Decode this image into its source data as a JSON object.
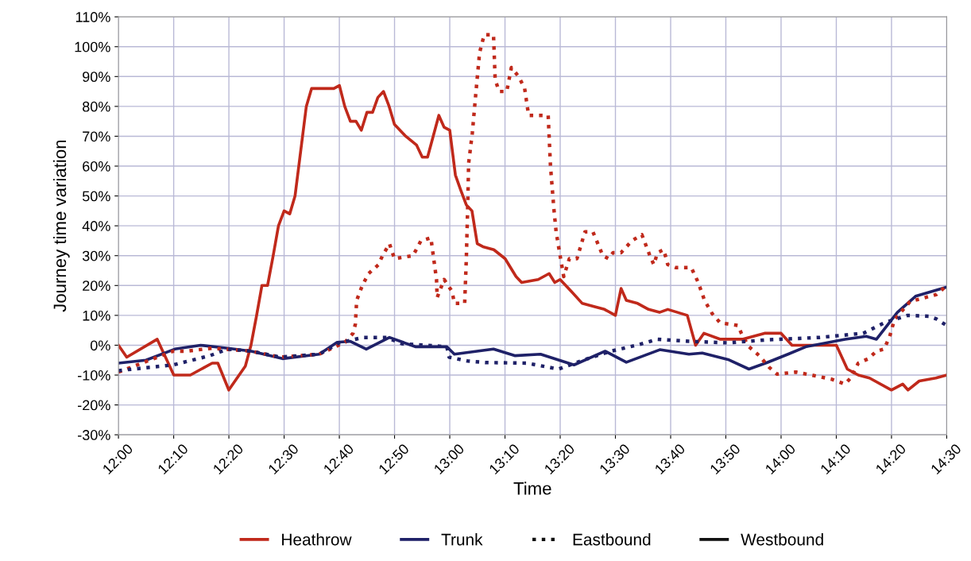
{
  "chart_data": {
    "type": "line",
    "xlabel": "Time",
    "ylabel": "Journey time variation",
    "xlim": [
      12,
      14.5
    ],
    "xticks": [
      {
        "value": 12,
        "label": "12:00"
      },
      {
        "value": 12.1667,
        "label": "12:10"
      },
      {
        "value": 12.3333,
        "label": "12:20"
      },
      {
        "value": 12.5,
        "label": "12:30"
      },
      {
        "value": 12.6667,
        "label": "12:40"
      },
      {
        "value": 12.8333,
        "label": "12:50"
      },
      {
        "value": 13,
        "label": "13:00"
      },
      {
        "value": 13.1667,
        "label": "13:10"
      },
      {
        "value": 13.3333,
        "label": "13:20"
      },
      {
        "value": 13.5,
        "label": "13:30"
      },
      {
        "value": 13.6667,
        "label": "13:40"
      },
      {
        "value": 13.8333,
        "label": "13:50"
      },
      {
        "value": 14,
        "label": "14:00"
      },
      {
        "value": 14.1667,
        "label": "14:10"
      },
      {
        "value": 14.3333,
        "label": "14:20"
      },
      {
        "value": 14.5,
        "label": "14:30"
      }
    ],
    "ylim": [
      -30,
      110
    ],
    "yticks": [
      {
        "value": -30,
        "label": "-30%"
      },
      {
        "value": -20,
        "label": "-20%"
      },
      {
        "value": -10,
        "label": "-10%"
      },
      {
        "value": 0,
        "label": "0%"
      },
      {
        "value": 10,
        "label": "10%"
      },
      {
        "value": 20,
        "label": "20%"
      },
      {
        "value": 30,
        "label": "30%"
      },
      {
        "value": 40,
        "label": "40%"
      },
      {
        "value": 50,
        "label": "50%"
      },
      {
        "value": 60,
        "label": "60%"
      },
      {
        "value": 70,
        "label": "70%"
      },
      {
        "value": 80,
        "label": "80%"
      },
      {
        "value": 90,
        "label": "90%"
      },
      {
        "value": 100,
        "label": "100%"
      },
      {
        "value": 110,
        "label": "110%"
      }
    ],
    "grid": true,
    "legend": "bottom",
    "series": [
      {
        "name": "Heathrow",
        "color": "#c0291b",
        "line_style": "solid",
        "x": [
          12,
          12.025,
          12.117,
          12.167,
          12.217,
          12.283,
          12.3,
          12.333,
          12.383,
          12.4,
          12.417,
          12.433,
          12.45,
          12.467,
          12.483,
          12.5,
          12.517,
          12.533,
          12.55,
          12.567,
          12.583,
          12.617,
          12.65,
          12.667,
          12.683,
          12.7,
          12.717,
          12.733,
          12.75,
          12.767,
          12.783,
          12.8,
          12.817,
          12.833,
          12.867,
          12.9,
          12.917,
          12.933,
          12.95,
          12.967,
          12.983,
          13,
          13.017,
          13.033,
          13.05,
          13.067,
          13.083,
          13.1,
          13.133,
          13.167,
          13.2,
          13.217,
          13.267,
          13.3,
          13.317,
          13.333,
          13.367,
          13.4,
          13.433,
          13.467,
          13.5,
          13.517,
          13.533,
          13.567,
          13.6,
          13.633,
          13.658,
          13.717,
          13.742,
          13.767,
          13.817,
          13.883,
          13.95,
          14,
          14.033,
          14.167,
          14.2,
          14.233,
          14.267,
          14.333,
          14.367,
          14.383,
          14.417,
          14.467,
          14.5
        ],
        "values": [
          0,
          -4,
          2,
          -10,
          -10,
          -6,
          -6,
          -15,
          -7,
          0,
          10,
          20,
          20,
          30,
          40,
          45,
          44,
          50,
          65,
          80,
          86,
          86,
          86,
          87,
          80,
          75,
          75,
          72,
          78,
          78,
          83,
          85,
          80,
          74,
          70,
          67,
          63,
          63,
          70,
          77,
          73,
          72,
          57,
          52,
          47,
          45,
          34,
          33,
          32,
          29,
          23,
          21,
          22,
          24,
          21,
          22,
          18,
          14,
          13,
          12,
          10,
          19,
          15,
          14,
          12,
          11,
          12,
          10,
          0,
          4,
          2,
          2,
          4,
          4,
          0,
          0,
          -8,
          -10,
          -11,
          -15,
          -13,
          -15,
          -12,
          -11,
          -10
        ]
      },
      {
        "name": "Trunk",
        "color": "#1f2168",
        "line_style": "solid",
        "x": [
          12,
          12.083,
          12.17,
          12.248,
          12.33,
          12.401,
          12.495,
          12.606,
          12.66,
          12.7,
          12.748,
          12.818,
          12.896,
          12.991,
          13.014,
          13.132,
          13.196,
          13.274,
          13.375,
          13.469,
          13.533,
          13.634,
          13.722,
          13.762,
          13.84,
          13.903,
          13.958,
          14.021,
          14.075,
          14.193,
          14.257,
          14.288,
          14.351,
          14.406,
          14.5
        ],
        "values": [
          -6,
          -5,
          -1.3,
          0,
          -1,
          -2,
          -4.5,
          -3,
          1,
          1.3,
          -1.3,
          2.6,
          -0.5,
          -0.5,
          -3,
          -1.3,
          -3.5,
          -3,
          -6.6,
          -2,
          -5.7,
          -1.5,
          -3,
          -2.6,
          -4.8,
          -8,
          -5.8,
          -3,
          -0.5,
          2,
          3,
          2,
          11,
          16.4,
          19.5
        ]
      },
      {
        "color": "#c0291b",
        "line_style": "dotted",
        "x": [
          12,
          12.106,
          12.165,
          12.205,
          12.283,
          12.401,
          12.488,
          12.606,
          12.684,
          12.708,
          12.715,
          12.719,
          12.736,
          12.755,
          12.785,
          12.797,
          12.818,
          12.833,
          12.889,
          12.913,
          12.943,
          12.96,
          12.962,
          12.983,
          13.007,
          13.014,
          13.045,
          13.05,
          13.054,
          13.057,
          13.068,
          13.08,
          13.09,
          13.104,
          13.132,
          13.137,
          13.149,
          13.172,
          13.186,
          13.208,
          13.226,
          13.238,
          13.297,
          13.304,
          13.314,
          13.321,
          13.333,
          13.344,
          13.361,
          13.384,
          13.408,
          13.432,
          13.462,
          13.479,
          13.493,
          13.517,
          13.55,
          13.58,
          13.604,
          13.616,
          13.627,
          13.646,
          13.658,
          13.682,
          13.729,
          13.75,
          13.769,
          13.792,
          13.816,
          13.87,
          13.88,
          13.903,
          13.934,
          13.965,
          13.988,
          14.045,
          14.092,
          14.153,
          14.193,
          14.21,
          14.233,
          14.264,
          14.288,
          14.311,
          14.328,
          14.342,
          14.389,
          14.436,
          14.469,
          14.5
        ],
        "values": [
          -9,
          -4.5,
          -2,
          -2,
          -1,
          -2,
          -4,
          -3,
          1,
          4,
          7,
          15,
          20,
          24,
          27,
          30,
          34,
          29,
          30,
          35,
          36,
          22,
          16,
          22,
          18,
          14,
          14,
          29,
          46,
          61,
          71,
          86,
          98,
          104,
          104,
          89,
          85,
          85,
          93,
          90,
          86,
          77,
          77,
          60,
          46,
          38,
          30,
          23,
          29,
          29,
          38,
          38,
          30,
          29,
          31,
          31,
          35,
          37,
          30,
          27,
          31,
          32,
          27,
          26,
          26,
          21,
          15,
          10.6,
          7.5,
          6.6,
          4,
          -0.5,
          -3.5,
          -7.5,
          -9.7,
          -9,
          -10,
          -11.4,
          -13,
          -11,
          -6,
          -4.5,
          -2,
          -1.3,
          3,
          8.5,
          14.6,
          16,
          17,
          20
        ]
      },
      {
        "color": "#1f2168",
        "line_style": "dotted",
        "x": [
          12,
          12.165,
          12.276,
          12.33,
          12.401,
          12.488,
          12.606,
          12.667,
          12.738,
          12.809,
          12.856,
          12.991,
          12.998,
          13.054,
          13.108,
          13.233,
          13.328,
          13.408,
          13.486,
          13.564,
          13.627,
          13.722,
          13.84,
          13.958,
          14.116,
          14.248,
          14.311,
          14.382,
          14.446,
          14.469,
          14.5
        ],
        "values": [
          -8.5,
          -6.6,
          -3.5,
          -1.3,
          -2,
          -4,
          -3,
          0.8,
          2.6,
          2.6,
          0.5,
          -0.5,
          -4,
          -5.3,
          -5.8,
          -6,
          -8,
          -4.8,
          -2,
          0,
          2,
          1.3,
          0.8,
          1.8,
          2.6,
          4,
          7.5,
          10,
          9.7,
          8.8,
          6.6
        ]
      },
      {
        "name": "Eastbound",
        "color": "#111111",
        "line_style": "dotted"
      },
      {
        "name": "Westbound",
        "color": "#111111",
        "line_style": "solid"
      }
    ]
  }
}
